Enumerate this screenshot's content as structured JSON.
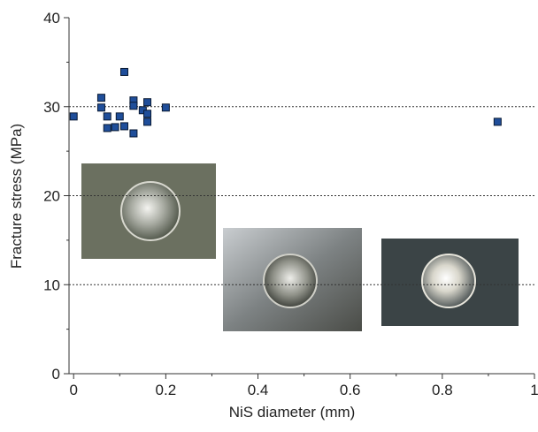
{
  "chart_data": {
    "type": "scatter",
    "x_label": "NiS diameter (mm)",
    "y_label": "Fracture stress (MPa)",
    "x": [
      0,
      0.06,
      0.06,
      0.073,
      0.073,
      0.09,
      0.1,
      0.11,
      0.11,
      0.13,
      0.13,
      0.13,
      0.15,
      0.16,
      0.16,
      0.16,
      0.2,
      0.92
    ],
    "values": [
      28.9,
      31.0,
      29.9,
      28.9,
      27.6,
      27.7,
      28.9,
      33.9,
      27.8,
      30.7,
      30.1,
      27.0,
      29.6,
      30.5,
      29.2,
      28.3,
      29.9,
      28.3
    ],
    "color": "#1f4e9a",
    "xlim": [
      -0.01,
      1
    ],
    "ylim": [
      0,
      40
    ],
    "xticks": [
      0,
      0.2,
      0.4,
      0.6,
      0.8,
      1
    ],
    "yticks": [
      0,
      10,
      20,
      30,
      40
    ],
    "xminorticks": [
      0.1,
      0.3,
      0.5,
      0.7,
      0.9
    ],
    "yminorticks": [
      5,
      15,
      25,
      35
    ],
    "grid": true
  }
}
